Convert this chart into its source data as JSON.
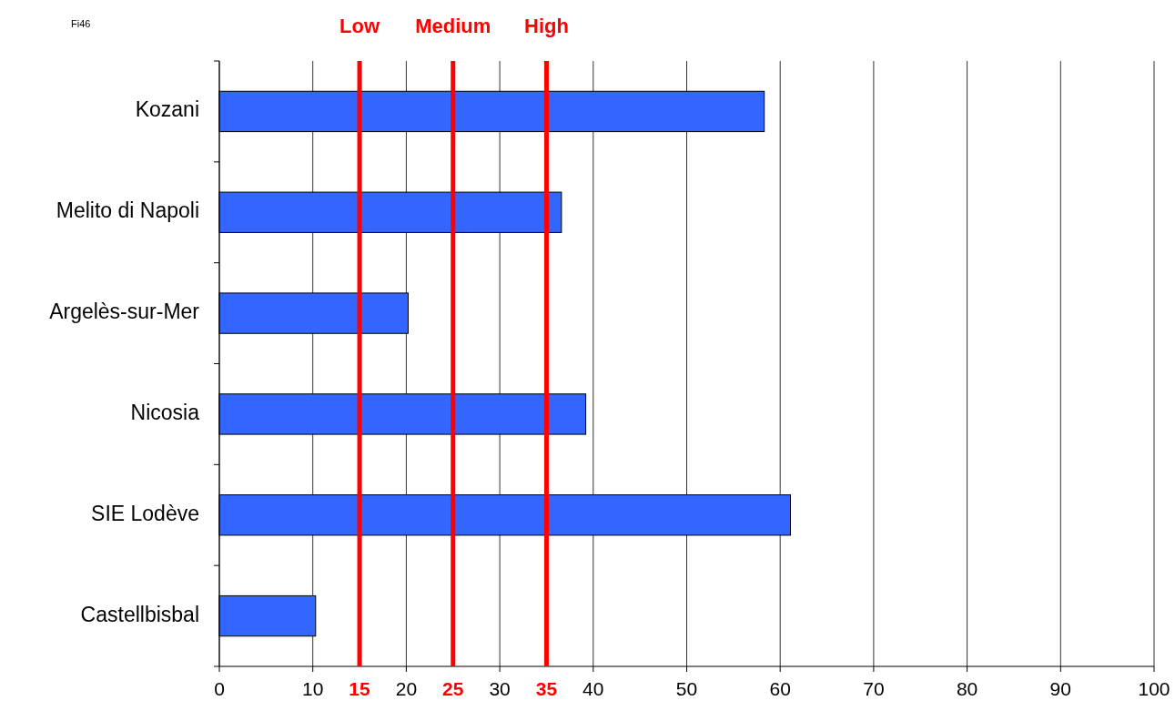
{
  "chart_data": {
    "type": "bar",
    "orientation": "horizontal",
    "categories": [
      "Kozani",
      "Melito di Napoli",
      "Argelès-sur-Mer",
      "Nicosia",
      "SIE Lodève",
      "Castellbisbal"
    ],
    "values": [
      58.3,
      36.6,
      20.2,
      39.2,
      61.1,
      10.3
    ],
    "color": "#3366ff",
    "xlim": [
      0,
      100
    ],
    "xticks": [
      0,
      10,
      20,
      30,
      40,
      50,
      60,
      70,
      80,
      90,
      100
    ],
    "grid": "x",
    "ref_lines": [
      {
        "axis": "x",
        "value": 15,
        "label": "15",
        "color": "#ff0000"
      },
      {
        "axis": "x",
        "value": 25,
        "label": "25",
        "color": "#ff0000"
      },
      {
        "axis": "x",
        "value": 35,
        "label": "35",
        "color": "#ff0000"
      }
    ],
    "annotations": [
      "Fi46",
      "Low",
      "Medium",
      "High"
    ]
  }
}
